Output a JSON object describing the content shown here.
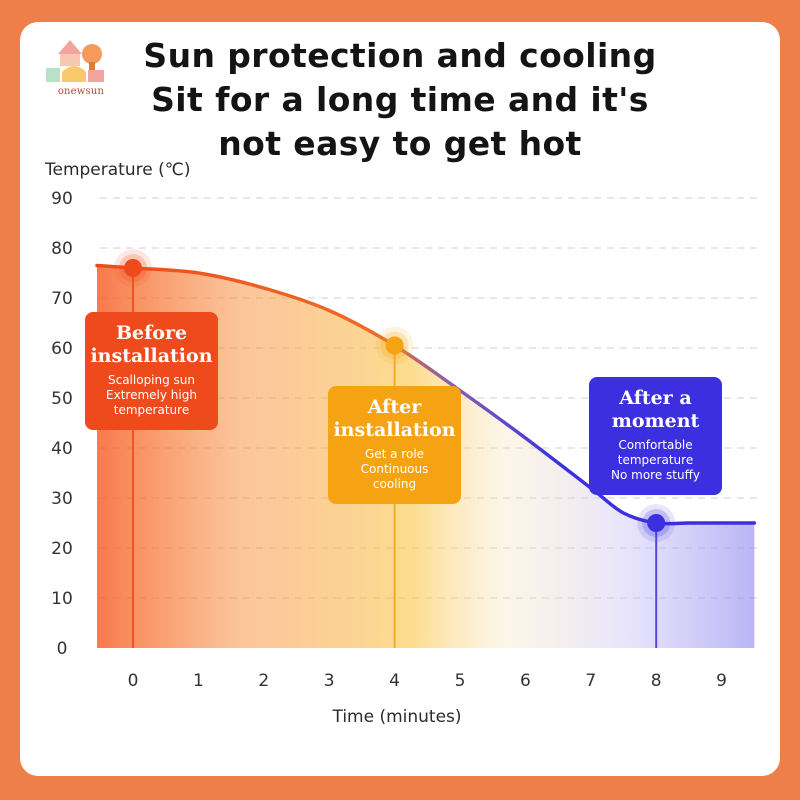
{
  "brand": {
    "logo_text": "onewsun"
  },
  "headline": [
    "Sun protection and cooling",
    "Sit for a long time and it's",
    "not easy to get hot"
  ],
  "colors": {
    "background": "#ee7f4a",
    "hot": "#ef4a1c",
    "warm": "#f6a313",
    "cool": "#3c2fe0"
  },
  "chart_data": {
    "type": "line",
    "ylabel": "Temperature (℃)",
    "xlabel": "Time (minutes)",
    "ylim": [
      0,
      90
    ],
    "xlim": [
      0,
      9
    ],
    "yticks": [
      0,
      10,
      20,
      30,
      40,
      50,
      60,
      70,
      80,
      90
    ],
    "xticks": [
      0,
      1,
      2,
      3,
      4,
      5,
      6,
      7,
      8,
      9
    ],
    "grid": true,
    "series": [
      {
        "x": [
          -0.55,
          0,
          1,
          2,
          3,
          4,
          5,
          6,
          7,
          7.5,
          8,
          8.5,
          9,
          9.5
        ],
        "y": [
          76.5,
          76,
          75,
          72,
          67.5,
          60.5,
          51.5,
          42,
          32,
          27,
          25,
          25,
          25,
          25
        ]
      }
    ],
    "highlights": [
      {
        "x": 0,
        "y": 76,
        "color": "#ef4a1c"
      },
      {
        "x": 4,
        "y": 60.5,
        "color": "#f6a313"
      },
      {
        "x": 8,
        "y": 25,
        "color": "#3c2fe0"
      }
    ],
    "annotations": [
      {
        "heading": [
          "Before",
          "installation"
        ],
        "text": [
          "Scalloping sun",
          "Extremely high",
          "temperature"
        ]
      },
      {
        "heading": [
          "After",
          "installation"
        ],
        "text": [
          "Get a role",
          "Continuous",
          "cooling"
        ]
      },
      {
        "heading": [
          "After a",
          "moment"
        ],
        "text": [
          "Comfortable",
          "temperature",
          "No more stuffy"
        ]
      }
    ]
  }
}
